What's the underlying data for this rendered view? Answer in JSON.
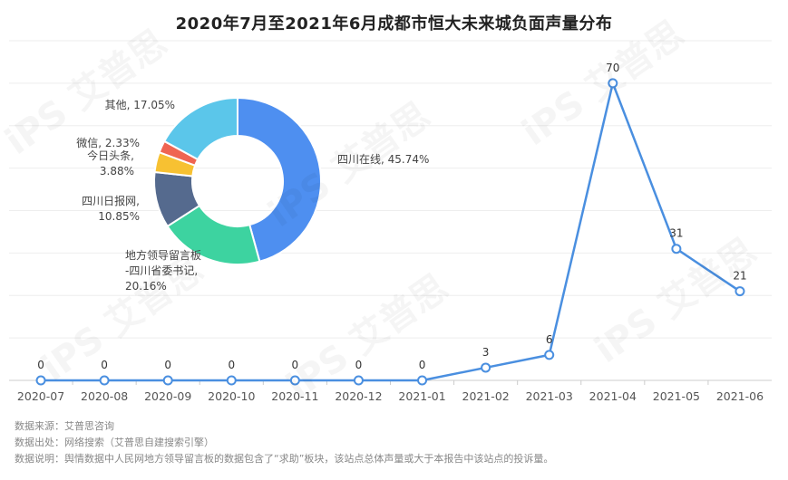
{
  "title": "2020年7月至2021年6月成都市恒大未来城负面声量分布",
  "watermark": "iPS 艾普思",
  "footer": {
    "source": "数据来源：艾普思咨询",
    "origin": "数据出处：网络搜索（艾普思自建搜索引擎）",
    "note": "数据说明：舆情数据中人民网地方领导留言板的数据包含了“求助”板块，该站点总体声量或大于本报告中该站点的投诉量。"
  },
  "chart_data": [
    {
      "type": "line",
      "categories": [
        "2020-07",
        "2020-08",
        "2020-09",
        "2020-10",
        "2020-11",
        "2020-12",
        "2021-01",
        "2021-02",
        "2021-03",
        "2021-04",
        "2021-05",
        "2021-06"
      ],
      "values": [
        0,
        0,
        0,
        0,
        0,
        0,
        0,
        3,
        6,
        70,
        31,
        21
      ],
      "ylim": [
        0,
        80
      ],
      "grid": true,
      "data_labels": true,
      "color": "#4a8fe0"
    },
    {
      "type": "pie",
      "donut": true,
      "slices": [
        {
          "label": "四川在线, 45.74%",
          "value": 45.74,
          "color": "#4e8ff0"
        },
        {
          "label": "地方领导留言板-四川省委书记, 20.16%",
          "value": 20.16,
          "color": "#3dd3a0",
          "label_lines": [
            "地方领导留言板",
            "-四川省委书记,",
            "20.16%"
          ]
        },
        {
          "label": "四川日报网, 10.85%",
          "value": 10.85,
          "color": "#556a8e",
          "label_lines": [
            "四川日报网,",
            "10.85%"
          ]
        },
        {
          "label": "今日头条, 3.88%",
          "value": 3.88,
          "color": "#f7c132",
          "label_lines": [
            "今日头条,",
            "3.88%"
          ]
        },
        {
          "label": "微信, 2.33%",
          "value": 2.33,
          "color": "#ef6552"
        },
        {
          "label": "其他, 17.05%",
          "value": 17.05,
          "color": "#5bc6ea"
        }
      ]
    }
  ]
}
